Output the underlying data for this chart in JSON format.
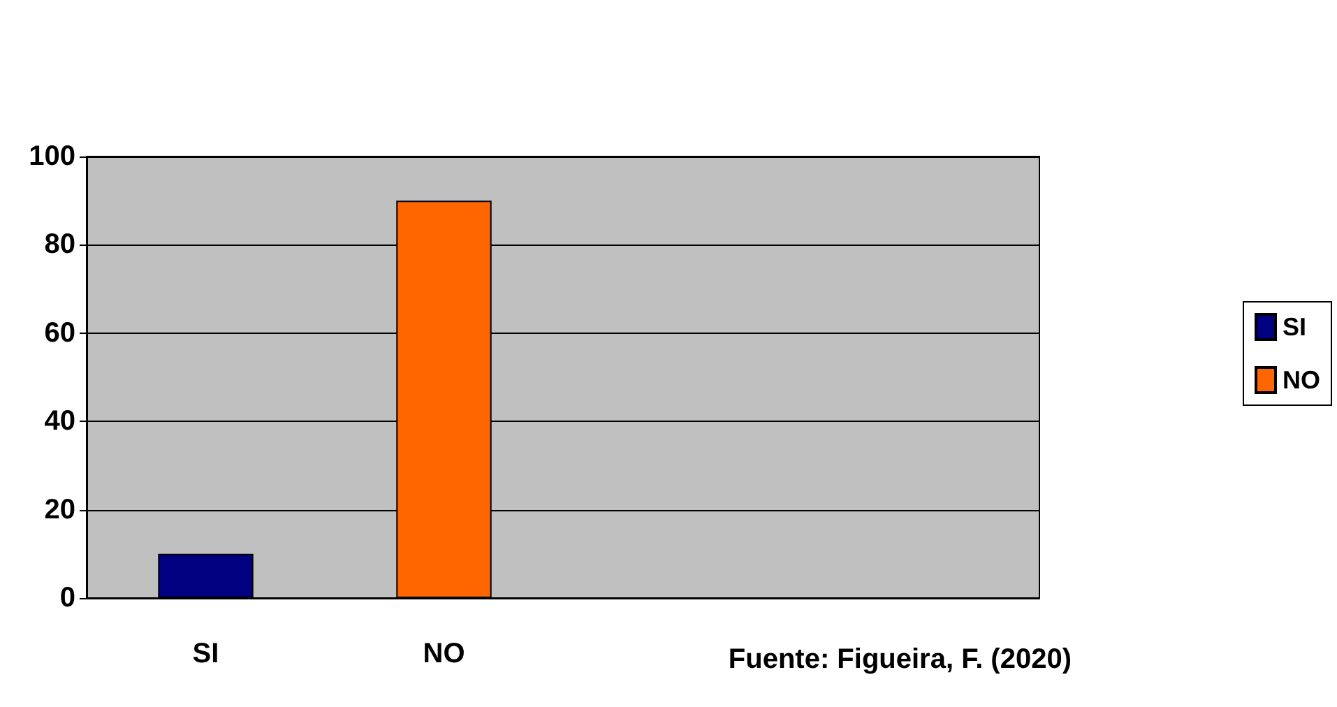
{
  "chart_data": {
    "type": "bar",
    "categories": [
      "SI",
      "NO",
      null,
      null
    ],
    "series": [
      {
        "name": "SI",
        "color": "#000080",
        "values": [
          10,
          null,
          null,
          null
        ]
      },
      {
        "name": "NO",
        "color": "#ff6600",
        "values": [
          null,
          90,
          null,
          null
        ]
      }
    ],
    "stacked": true,
    "ylim": [
      0,
      100
    ],
    "yticks": [
      0,
      20,
      40,
      60,
      80,
      100
    ],
    "grid": "y",
    "legend": "right",
    "annotations": [
      "Fuente: Figueira, F. (2020)"
    ]
  }
}
